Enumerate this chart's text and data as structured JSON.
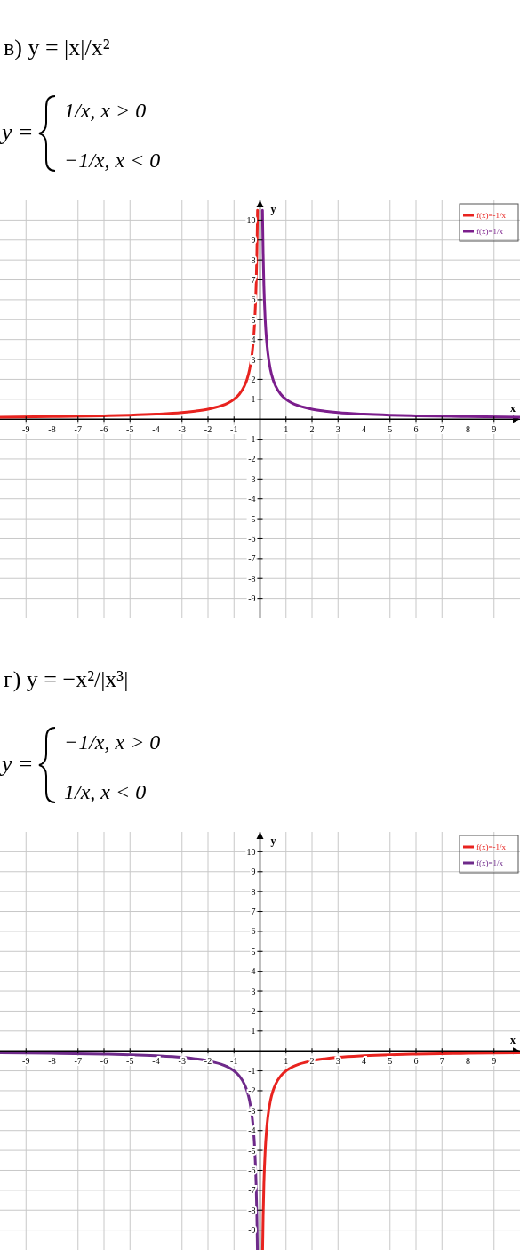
{
  "chart_data": [
    {
      "type": "line",
      "title": "в) y = |x|/x²",
      "annotations": [
        "y =",
        "1/x,      x > 0",
        "−1/x,      x < 0"
      ],
      "xlabel": "x",
      "ylabel": "y",
      "xlim": [
        -10,
        10
      ],
      "ylim": [
        -10,
        11
      ],
      "xticks": [
        -9,
        -8,
        -7,
        -6,
        -5,
        -4,
        -3,
        -2,
        -1,
        1,
        2,
        3,
        4,
        5,
        6,
        7,
        8,
        9
      ],
      "yticks": [
        -9,
        -8,
        -7,
        -6,
        -5,
        -4,
        -3,
        -2,
        -1,
        1,
        2,
        3,
        4,
        5,
        6,
        7,
        8,
        9,
        10
      ],
      "grid": true,
      "legend": "top right",
      "series": [
        {
          "name": "f(x)=-1/x",
          "color": "#e8231f",
          "x": [
            -10,
            -8,
            -6,
            -5,
            -4,
            -3,
            -2.5,
            -2,
            -1.5,
            -1.25,
            -1,
            -0.8,
            -0.6,
            -0.5,
            -0.4,
            -0.3,
            -0.25,
            -0.2,
            -0.15,
            -0.12,
            -0.1,
            -0.095
          ],
          "values": [
            0.1,
            0.13,
            0.17,
            0.2,
            0.25,
            0.33,
            0.4,
            0.5,
            0.67,
            0.8,
            1,
            1.25,
            1.67,
            2,
            2.5,
            3.33,
            4,
            5,
            6.67,
            8.33,
            10,
            10.5
          ]
        },
        {
          "name": "f(x)=1/x",
          "color": "#7b1e8c",
          "x": [
            0.095,
            0.1,
            0.12,
            0.15,
            0.2,
            0.25,
            0.3,
            0.4,
            0.5,
            0.6,
            0.8,
            1,
            1.25,
            1.5,
            2,
            2.5,
            3,
            4,
            5,
            6,
            8,
            10
          ],
          "values": [
            10.5,
            10,
            8.33,
            6.67,
            5,
            4,
            3.33,
            2.5,
            2,
            1.67,
            1.25,
            1,
            0.8,
            0.67,
            0.5,
            0.4,
            0.33,
            0.25,
            0.2,
            0.17,
            0.13,
            0.1
          ]
        }
      ]
    },
    {
      "type": "line",
      "title": "г) y = −x²/|x³|",
      "annotations": [
        "y =",
        "−1/x,      x > 0",
        "1/x,      x < 0"
      ],
      "xlabel": "x",
      "ylabel": "y",
      "xlim": [
        -10,
        10
      ],
      "ylim": [
        -10,
        11
      ],
      "xticks": [
        -9,
        -8,
        -7,
        -6,
        -5,
        -4,
        -3,
        -2,
        -1,
        1,
        2,
        3,
        4,
        5,
        6,
        7,
        8,
        9
      ],
      "yticks": [
        -9,
        -8,
        -7,
        -6,
        -5,
        -4,
        -3,
        -2,
        -1,
        1,
        2,
        3,
        4,
        5,
        6,
        7,
        8,
        9,
        10
      ],
      "grid": true,
      "legend": "top right",
      "series": [
        {
          "name": "f(x)=-1/x",
          "color": "#e8231f",
          "x": [
            0.1,
            0.12,
            0.15,
            0.2,
            0.25,
            0.3,
            0.4,
            0.5,
            0.6,
            0.8,
            1,
            1.25,
            1.5,
            2,
            2.5,
            3,
            4,
            5,
            6,
            8,
            10
          ],
          "values": [
            -10,
            -8.33,
            -6.67,
            -5,
            -4,
            -3.33,
            -2.5,
            -2,
            -1.67,
            -1.25,
            -1,
            -0.8,
            -0.67,
            -0.5,
            -0.4,
            -0.33,
            -0.25,
            -0.2,
            -0.17,
            -0.13,
            -0.1
          ]
        },
        {
          "name": "f(x)=1/x",
          "color": "#6e2a8a",
          "x": [
            -10,
            -8,
            -6,
            -5,
            -4,
            -3,
            -2.5,
            -2,
            -1.5,
            -1.25,
            -1,
            -0.8,
            -0.6,
            -0.5,
            -0.4,
            -0.3,
            -0.25,
            -0.2,
            -0.15,
            -0.12,
            -0.1
          ],
          "values": [
            -0.1,
            -0.13,
            -0.17,
            -0.2,
            -0.25,
            -0.33,
            -0.4,
            -0.5,
            -0.67,
            -0.8,
            -1,
            -1.25,
            -1.67,
            -2,
            -2.5,
            -3.33,
            -4,
            -5,
            -6.67,
            -8.33,
            -10
          ]
        }
      ]
    }
  ]
}
